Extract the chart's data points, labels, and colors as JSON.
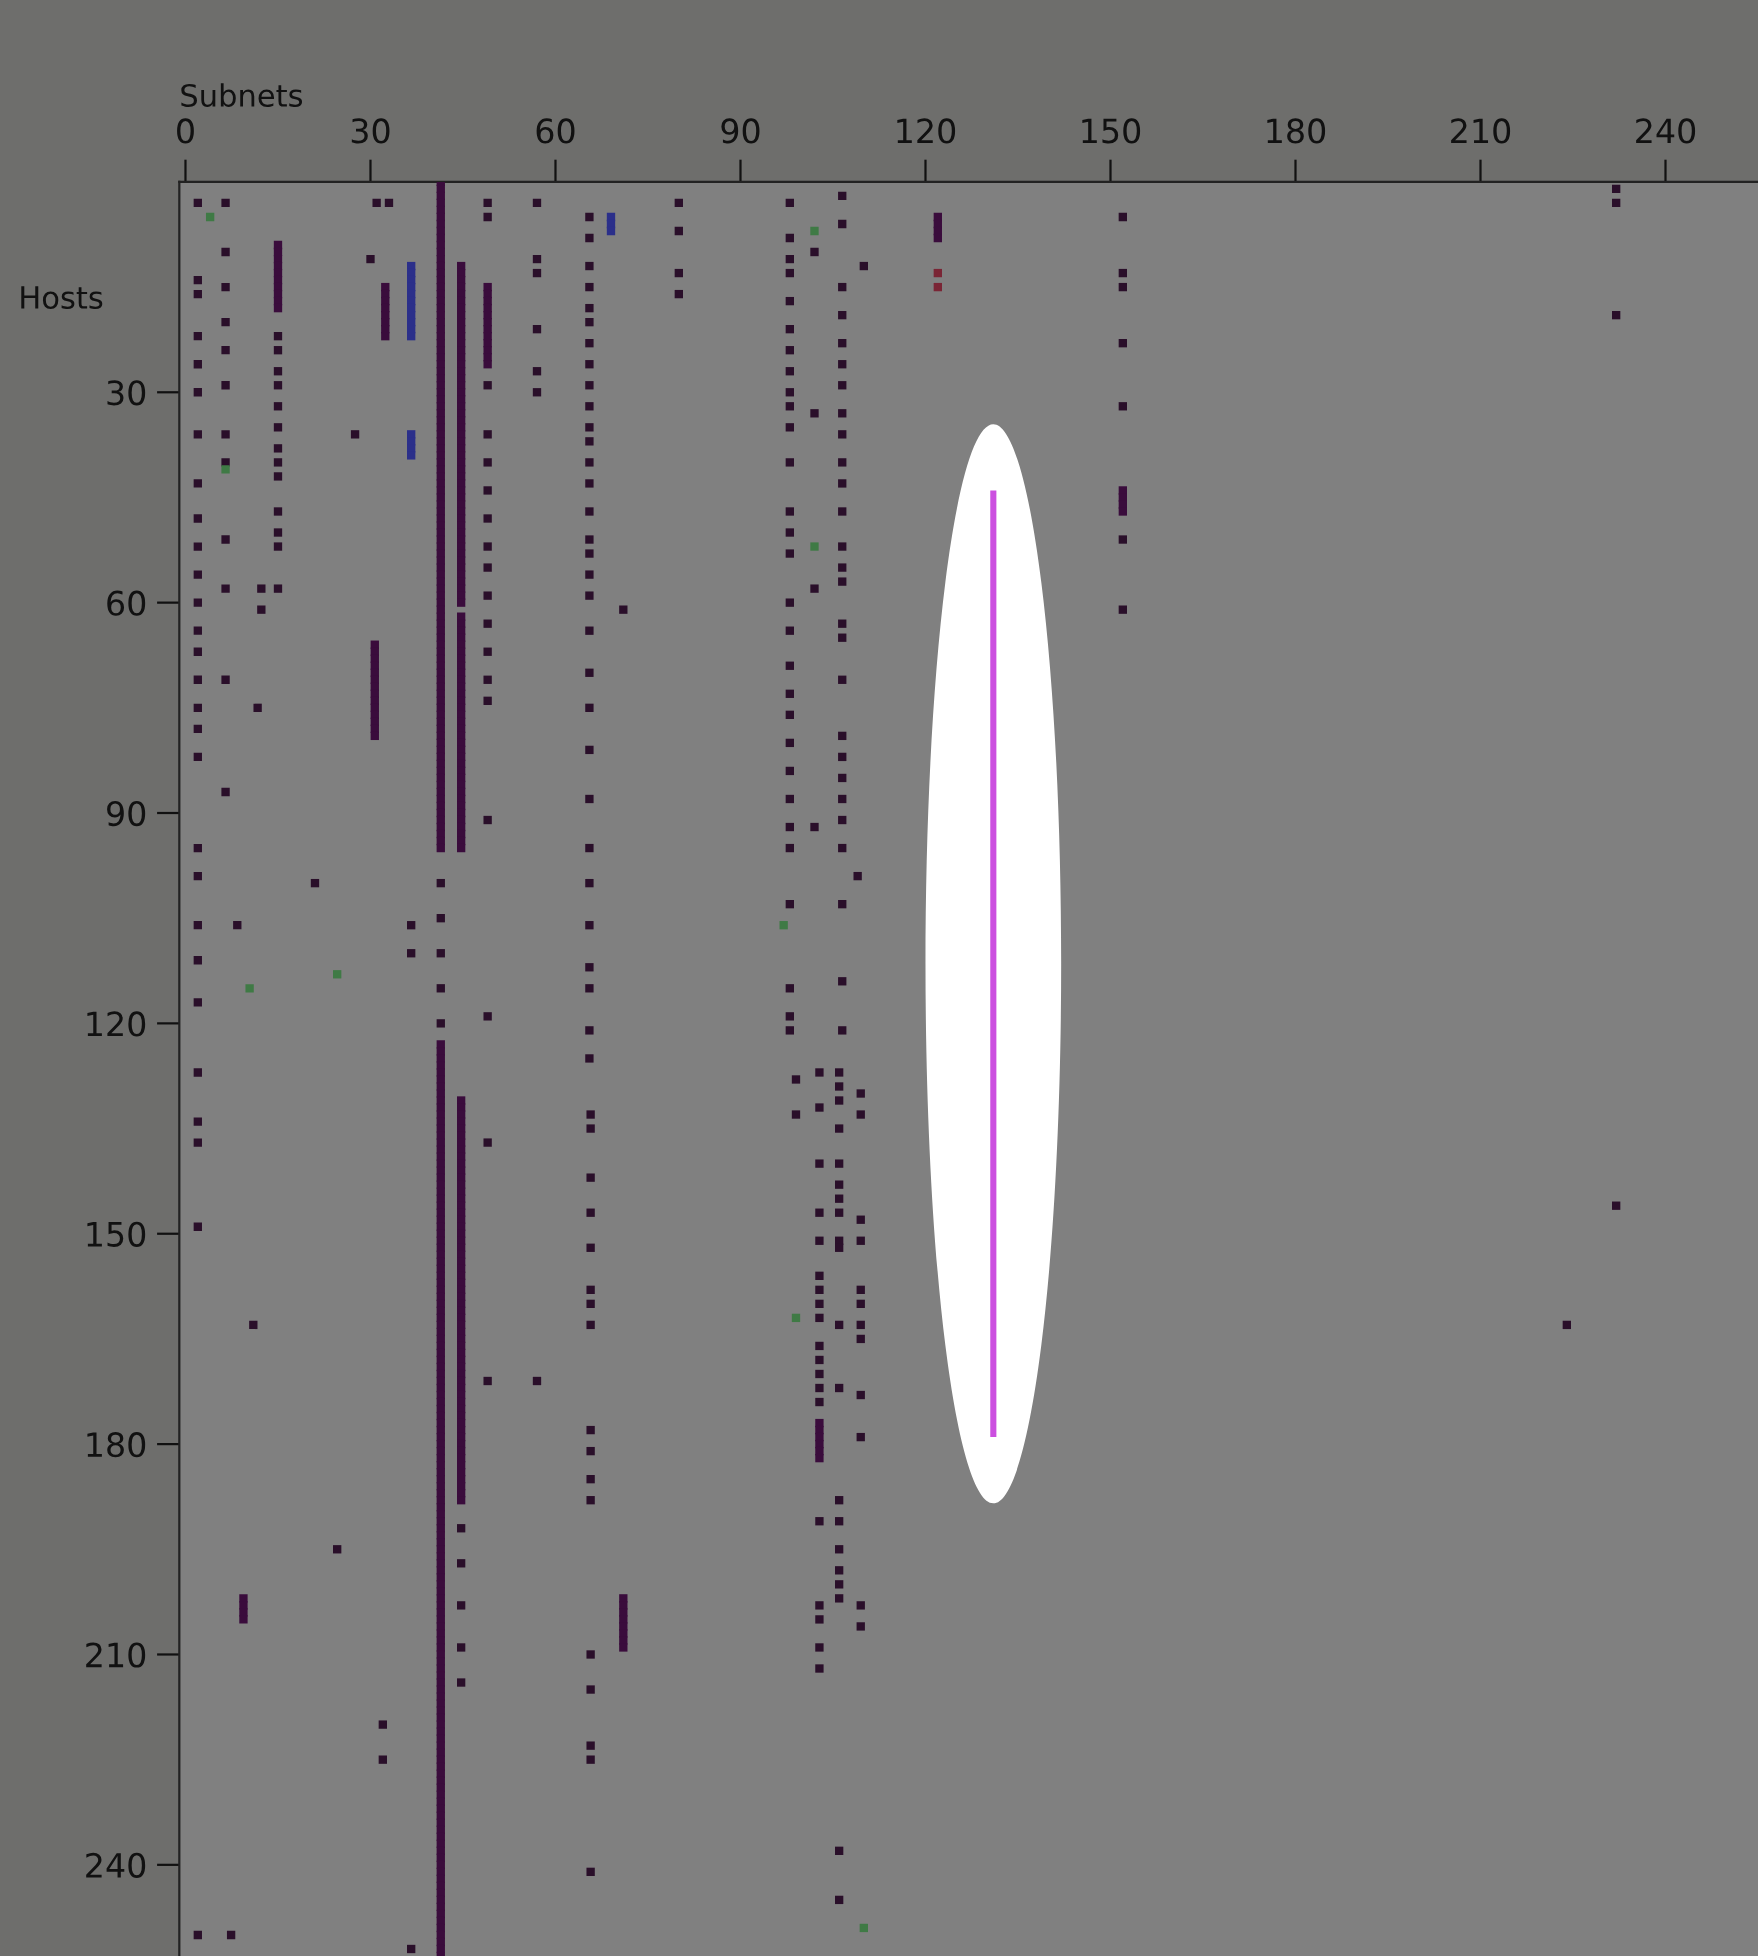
{
  "chart_data": {
    "type": "scatter",
    "xlabel": "Subnets",
    "ylabel": "Hosts",
    "xlim": [
      -1,
      255
    ],
    "ylim": [
      253,
      0
    ],
    "xticks": [
      0,
      30,
      60,
      90,
      120,
      150,
      180,
      210,
      240
    ],
    "yticks": [
      30,
      60,
      90,
      120,
      150,
      180,
      210,
      240
    ],
    "marker": "square",
    "line_style": "solid",
    "series": [
      {
        "type": "scatter",
        "color": "#2a0f2a",
        "x": [
          2,
          2,
          2,
          2,
          2,
          2,
          2,
          2,
          2,
          2,
          2,
          2,
          2,
          2,
          2,
          2,
          2,
          2,
          2,
          2,
          2,
          2,
          2,
          2,
          2,
          2,
          2,
          2
        ],
        "values": [
          3,
          14,
          16,
          22,
          26,
          30,
          36,
          43,
          48,
          52,
          56,
          60,
          64,
          67,
          71,
          75,
          78,
          82,
          95,
          99,
          106,
          111,
          117,
          127,
          134,
          137,
          149,
          250
        ]
      },
      {
        "type": "scatter",
        "color": "#2a0f2a",
        "x": [
          6.5,
          6.5,
          6.5,
          6.5,
          6.5,
          6.5,
          6.5,
          6.5,
          6.5,
          6.5,
          6.5,
          6.5,
          12.3,
          12.3,
          11.7,
          21,
          8.4,
          11,
          24.6,
          7.4,
          36.6,
          36.6,
          36.6,
          27.5,
          30,
          31,
          33
        ],
        "values": [
          3,
          10,
          15,
          20,
          24,
          29,
          36,
          40,
          51,
          58,
          71,
          87,
          58,
          61,
          75,
          100,
          106,
          163,
          195,
          250,
          106,
          110,
          252,
          36,
          11,
          3,
          3
        ]
      },
      {
        "type": "scatter",
        "color": "#2a0f2a",
        "x": [
          15,
          15,
          15,
          15,
          15,
          15,
          15,
          15,
          15,
          15,
          15,
          15,
          15,
          41.4,
          41.4,
          41.4,
          41.4,
          41.4,
          32,
          32
        ],
        "values": [
          22,
          24,
          27,
          29,
          32,
          35,
          38,
          40,
          42,
          47,
          50,
          52,
          58,
          100,
          105,
          110,
          115,
          120,
          220,
          225
        ]
      },
      {
        "type": "scatter",
        "color": "#2a0f2a",
        "x": [
          44.7,
          44.7,
          44.7,
          44.7,
          44.7,
          49,
          49,
          49,
          49,
          49,
          49,
          49,
          49,
          49,
          49,
          49,
          49,
          49,
          49,
          49,
          49,
          49,
          49
        ],
        "values": [
          192,
          197,
          203,
          209,
          214,
          3,
          5,
          29,
          36,
          40,
          44,
          48,
          52,
          55,
          59,
          63,
          67,
          71,
          74,
          91,
          119,
          137,
          171
        ]
      },
      {
        "type": "scatter",
        "color": "#2a0f2a",
        "x": [
          57,
          57,
          57,
          57,
          57,
          57,
          57,
          71
        ],
        "values": [
          3,
          11,
          13,
          21,
          27,
          30,
          171,
          61
        ]
      },
      {
        "type": "scatter",
        "color": "#2a0f2a",
        "x": [
          65.5,
          65.5,
          65.5,
          65.5,
          65.5,
          65.5,
          65.5,
          65.5,
          65.5,
          65.5,
          65.5,
          65.5,
          65.5,
          65.5,
          65.5,
          65.5,
          65.5,
          65.5,
          65.5,
          65.5,
          65.5,
          65.5,
          65.5,
          65.5,
          65.5,
          65.5,
          65.5,
          65.5,
          65.5,
          65.5,
          65.5
        ],
        "values": [
          5,
          8,
          12,
          15,
          18,
          20,
          23,
          26,
          29,
          32,
          35,
          37,
          40,
          43,
          47,
          51,
          53,
          56,
          59,
          64,
          70,
          75,
          81,
          88,
          95,
          100,
          106,
          112,
          115,
          121,
          125
        ]
      },
      {
        "type": "scatter",
        "color": "#2a0f2a",
        "x": [
          65.7,
          65.7,
          65.7,
          65.7,
          65.7,
          65.7,
          65.7,
          65.7,
          65.7,
          65.7,
          65.7,
          65.7,
          65.7,
          65.7,
          65.7,
          65.7,
          65.7
        ],
        "values": [
          133,
          135,
          142,
          147,
          152,
          158,
          160,
          163,
          178,
          181,
          185,
          188,
          210,
          215,
          223,
          225,
          241
        ]
      },
      {
        "type": "scatter",
        "color": "#2a0f2a",
        "x": [
          80,
          80,
          80,
          80,
          98,
          98,
          98,
          98,
          98,
          98,
          98,
          98,
          98,
          98,
          98,
          98,
          98,
          98,
          98,
          98,
          98,
          98,
          98,
          98,
          98,
          98,
          98,
          98,
          98,
          98,
          98,
          98,
          98
        ],
        "values": [
          3,
          7,
          13,
          16,
          3,
          8,
          11,
          13,
          17,
          21,
          24,
          27,
          30,
          32,
          35,
          40,
          47,
          50,
          53,
          60,
          64,
          69,
          73,
          76,
          80,
          84,
          88,
          92,
          95,
          103,
          115,
          119,
          121
        ]
      },
      {
        "type": "scatter",
        "color": "#2a0f2a",
        "x": [
          102,
          102,
          102,
          102,
          106.5,
          106.5,
          106.5,
          106.5,
          106.5,
          106.5,
          106.5,
          106.5,
          106.5,
          106.5,
          106.5,
          106.5,
          106.5,
          106.5,
          106.5,
          106.5,
          106.5,
          106.5,
          106.5,
          106.5,
          106.5,
          106.5,
          106.5,
          106.5,
          106.5,
          106.5,
          106.5,
          110,
          109
        ],
        "values": [
          10,
          33,
          58,
          92,
          2,
          6,
          15,
          19,
          23,
          26,
          29,
          33,
          36,
          40,
          43,
          47,
          52,
          55,
          57,
          63,
          65,
          71,
          79,
          82,
          85,
          88,
          91,
          95,
          103,
          114,
          121,
          12,
          99
        ]
      },
      {
        "type": "scatter",
        "color": "#2a0f2a",
        "x": [
          99,
          99,
          102.8,
          102.8,
          102.8,
          102.8,
          102.8,
          102.8,
          102.8,
          102.8,
          102.8,
          102.8,
          102.8,
          102.8,
          102.8,
          102.8,
          102.8,
          102.8,
          102.8,
          102.8,
          102.8
        ],
        "values": [
          128,
          133,
          127,
          132,
          140,
          147,
          151,
          156,
          158,
          160,
          162,
          166,
          168,
          170,
          172,
          174,
          191,
          203,
          205,
          209,
          212
        ]
      },
      {
        "type": "scatter",
        "color": "#2a0f2a",
        "x": [
          106,
          106,
          106,
          106,
          106,
          106,
          106,
          106,
          106,
          106,
          106,
          106,
          106,
          106,
          106,
          106,
          106,
          106,
          106,
          106
        ],
        "values": [
          127,
          129,
          131,
          135,
          140,
          143,
          145,
          147,
          151,
          152,
          163,
          172,
          188,
          191,
          195,
          198,
          200,
          202,
          238,
          245
        ]
      },
      {
        "type": "scatter",
        "color": "#2a0f2a",
        "x": [
          109.5,
          109.5,
          109.5,
          109.5,
          109.5,
          109.5,
          109.5,
          109.5,
          109.5,
          109.5,
          109.5,
          109.5,
          152,
          152,
          152,
          152,
          152,
          152,
          152,
          232,
          232,
          232,
          232,
          224
        ],
        "values": [
          130,
          133,
          148,
          151,
          158,
          160,
          163,
          165,
          173,
          179,
          203,
          206,
          5,
          13,
          15,
          23,
          32,
          51,
          61,
          1,
          3,
          19,
          146,
          163
        ]
      },
      {
        "type": "scatter",
        "color": "#7a2535",
        "x": [
          122,
          122
        ],
        "values": [
          13,
          15
        ]
      },
      {
        "type": "scatter",
        "color": "#3f7a45",
        "x": [
          4,
          6.5,
          10.4,
          24.6,
          102,
          97,
          102,
          99,
          110
        ],
        "values": [
          5,
          41,
          115,
          113,
          7,
          106,
          52,
          162,
          249
        ]
      },
      {
        "color": "#3a0c3c",
        "x": [
          41.4,
          41.4,
          41.4,
          41.4,
          41.4,
          41.4,
          41.4,
          41.4,
          41.4,
          41.4,
          41.4,
          41.4,
          41.4,
          41.4,
          41.4,
          41.4,
          41.4,
          41.4,
          41.4,
          41.4,
          41.4,
          41.4,
          41.4,
          41.4,
          41.4,
          41.4,
          41.4,
          41.4,
          41.4,
          41.4,
          41.4,
          41.4,
          41.4,
          41.4,
          41.4,
          41.4,
          41.4,
          41.4,
          41.4,
          41.4,
          41.4,
          41.4,
          41.4,
          41.4,
          41.4,
          41.4,
          41.4,
          41.4
        ],
        "values": [
          0,
          1,
          2,
          3,
          4,
          5,
          6,
          7,
          8,
          9,
          10,
          11,
          12,
          13,
          14,
          15,
          16,
          17,
          18,
          19,
          20,
          21,
          22,
          23,
          24,
          25,
          26,
          27,
          28,
          29,
          30,
          31,
          32,
          33,
          34,
          35,
          36,
          37,
          38,
          39,
          40,
          41,
          42,
          43,
          44,
          45,
          46,
          47
        ]
      },
      {
        "color": "#3a0c3c",
        "x": [
          41.4,
          41.4,
          41.4,
          41.4,
          41.4,
          41.4,
          41.4,
          41.4,
          41.4,
          41.4,
          41.4,
          41.4,
          41.4,
          41.4,
          41.4,
          41.4,
          41.4,
          41.4,
          41.4,
          41.4,
          41.4,
          41.4,
          41.4,
          41.4,
          41.4,
          41.4,
          41.4,
          41.4,
          41.4,
          41.4,
          41.4,
          41.4,
          41.4,
          41.4,
          41.4,
          41.4,
          41.4,
          41.4,
          41.4,
          41.4,
          41.4,
          41.4,
          41.4,
          41.4,
          41.4,
          41.4,
          41.4,
          41.4
        ],
        "values": [
          48,
          49,
          50,
          51,
          52,
          53,
          54,
          55,
          56,
          57,
          58,
          59,
          60,
          61,
          62,
          63,
          64,
          65,
          66,
          67,
          68,
          69,
          70,
          71,
          72,
          73,
          74,
          75,
          76,
          77,
          78,
          79,
          80,
          81,
          82,
          83,
          84,
          85,
          86,
          87,
          88,
          89,
          90,
          91,
          92,
          93,
          94,
          95
        ]
      },
      {
        "color": "#3a0c3c",
        "x": [
          41.4,
          41.4,
          41.4,
          41.4,
          41.4,
          41.4,
          41.4,
          41.4,
          41.4,
          41.4,
          41.4,
          41.4,
          41.4,
          41.4,
          41.4,
          41.4,
          41.4,
          41.4,
          41.4,
          41.4,
          41.4,
          41.4,
          41.4,
          41.4,
          41.4,
          41.4,
          41.4,
          41.4,
          41.4,
          41.4,
          41.4,
          41.4,
          41.4,
          41.4,
          41.4,
          41.4,
          41.4,
          41.4,
          41.4,
          41.4,
          41.4,
          41.4,
          41.4,
          41.4,
          41.4,
          41.4,
          41.4,
          41.4,
          41.4,
          41.4,
          41.4,
          41.4,
          41.4,
          41.4,
          41.4,
          41.4,
          41.4,
          41.4,
          41.4,
          41.4,
          41.4,
          41.4,
          41.4,
          41.4,
          41.4
        ],
        "values": [
          123,
          124,
          125,
          126,
          127,
          128,
          129,
          130,
          131,
          132,
          133,
          134,
          135,
          136,
          137,
          138,
          139,
          140,
          141,
          142,
          143,
          144,
          145,
          146,
          147,
          148,
          149,
          150,
          151,
          152,
          153,
          154,
          155,
          156,
          157,
          158,
          159,
          160,
          161,
          162,
          163,
          164,
          165,
          166,
          167,
          168,
          169,
          170,
          171,
          172,
          173,
          174,
          175,
          176,
          177,
          178,
          179,
          180,
          181,
          182,
          183,
          184,
          185,
          186,
          187
        ]
      },
      {
        "color": "#3a0c3c",
        "x": [
          41.4,
          41.4,
          41.4,
          41.4,
          41.4,
          41.4,
          41.4,
          41.4,
          41.4,
          41.4,
          41.4,
          41.4,
          41.4,
          41.4,
          41.4,
          41.4,
          41.4,
          41.4,
          41.4,
          41.4,
          41.4,
          41.4,
          41.4,
          41.4,
          41.4,
          41.4,
          41.4,
          41.4,
          41.4,
          41.4,
          41.4,
          41.4,
          41.4,
          41.4,
          41.4,
          41.4,
          41.4,
          41.4,
          41.4,
          41.4,
          41.4,
          41.4,
          41.4,
          41.4,
          41.4,
          41.4,
          41.4,
          41.4,
          41.4,
          41.4,
          41.4,
          41.4,
          41.4,
          41.4,
          41.4,
          41.4,
          41.4,
          41.4,
          41.4,
          41.4,
          41.4,
          41.4,
          41.4,
          41.4,
          41.4,
          41.4
        ],
        "values": [
          188,
          189,
          190,
          191,
          192,
          193,
          194,
          195,
          196,
          197,
          198,
          199,
          200,
          201,
          202,
          203,
          204,
          205,
          206,
          207,
          208,
          209,
          210,
          211,
          212,
          213,
          214,
          215,
          216,
          217,
          218,
          219,
          220,
          221,
          222,
          223,
          224,
          225,
          226,
          227,
          228,
          229,
          230,
          231,
          232,
          233,
          234,
          235,
          236,
          237,
          238,
          239,
          240,
          241,
          242,
          243,
          244,
          245,
          246,
          247,
          248,
          249,
          250,
          251,
          252,
          253
        ]
      },
      {
        "color": "#3a0c3c",
        "x": [
          44.7,
          44.7,
          44.7,
          44.7,
          44.7,
          44.7,
          44.7,
          44.7,
          44.7,
          44.7,
          44.7,
          44.7,
          44.7,
          44.7,
          44.7,
          44.7,
          44.7,
          44.7,
          44.7,
          44.7,
          44.7,
          44.7,
          44.7,
          44.7,
          44.7,
          44.7,
          44.7,
          44.7,
          44.7,
          44.7,
          44.7,
          44.7,
          44.7,
          44.7,
          44.7,
          44.7,
          44.7,
          44.7,
          44.7,
          44.7,
          44.7,
          44.7,
          44.7,
          44.7,
          44.7,
          44.7,
          44.7,
          44.7,
          44.7
        ],
        "values": [
          12,
          13,
          14,
          15,
          16,
          17,
          18,
          19,
          20,
          21,
          22,
          23,
          24,
          25,
          26,
          27,
          28,
          29,
          30,
          31,
          32,
          33,
          34,
          35,
          36,
          37,
          38,
          39,
          40,
          41,
          42,
          43,
          44,
          45,
          46,
          47,
          48,
          49,
          50,
          51,
          52,
          53,
          54,
          55,
          56,
          57,
          58,
          59,
          60
        ]
      },
      {
        "color": "#3a0c3c",
        "x": [
          44.7,
          44.7,
          44.7,
          44.7,
          44.7,
          44.7,
          44.7,
          44.7,
          44.7,
          44.7,
          44.7,
          44.7,
          44.7,
          44.7,
          44.7,
          44.7,
          44.7,
          44.7,
          44.7,
          44.7,
          44.7,
          44.7,
          44.7,
          44.7,
          44.7,
          44.7,
          44.7,
          44.7,
          44.7,
          44.7,
          44.7,
          44.7,
          44.7,
          44.7
        ],
        "values": [
          62,
          63,
          64,
          65,
          66,
          67,
          68,
          69,
          70,
          71,
          72,
          73,
          74,
          75,
          76,
          77,
          78,
          79,
          80,
          81,
          82,
          83,
          84,
          85,
          86,
          87,
          88,
          89,
          90,
          91,
          92,
          93,
          94,
          95
        ]
      },
      {
        "color": "#3a0c3c",
        "x": [
          44.7,
          44.7,
          44.7,
          44.7,
          44.7,
          44.7,
          44.7,
          44.7,
          44.7,
          44.7,
          44.7,
          44.7,
          44.7,
          44.7,
          44.7,
          44.7,
          44.7,
          44.7,
          44.7,
          44.7,
          44.7,
          44.7,
          44.7,
          44.7,
          44.7,
          44.7,
          44.7,
          44.7,
          44.7,
          44.7,
          44.7,
          44.7,
          44.7,
          44.7,
          44.7,
          44.7,
          44.7,
          44.7,
          44.7,
          44.7,
          44.7,
          44.7,
          44.7,
          44.7,
          44.7,
          44.7,
          44.7,
          44.7,
          44.7,
          44.7,
          44.7,
          44.7,
          44.7,
          44.7,
          44.7,
          44.7,
          44.7,
          44.7
        ],
        "values": [
          131,
          132,
          133,
          134,
          135,
          136,
          137,
          138,
          139,
          140,
          141,
          142,
          143,
          144,
          145,
          146,
          147,
          148,
          149,
          150,
          151,
          152,
          153,
          154,
          155,
          156,
          157,
          158,
          159,
          160,
          161,
          162,
          163,
          164,
          165,
          166,
          167,
          168,
          169,
          170,
          171,
          172,
          173,
          174,
          175,
          176,
          177,
          178,
          179,
          180,
          181,
          182,
          183,
          184,
          185,
          186,
          187,
          188
        ]
      },
      {
        "color": "#3a0c3c",
        "x": [
          15,
          15,
          15,
          15,
          15,
          15,
          15,
          15,
          15,
          15,
          30.7,
          30.7,
          30.7,
          30.7,
          30.7,
          30.7,
          30.7,
          30.7,
          30.7,
          30.7,
          30.7,
          30.7,
          30.7,
          30.7,
          32.4,
          32.4,
          32.4,
          32.4,
          32.4,
          32.4,
          32.4,
          32.4,
          49,
          49,
          49,
          49,
          49,
          49,
          49,
          49,
          49,
          49,
          49,
          49,
          71,
          71,
          71,
          71,
          71,
          71,
          71,
          71,
          9.4,
          9.4,
          9.4,
          9.4
        ],
        "values": [
          9,
          10,
          11,
          12,
          13,
          14,
          15,
          16,
          17,
          18,
          66,
          67,
          68,
          69,
          70,
          71,
          72,
          73,
          74,
          75,
          76,
          77,
          78,
          79,
          15,
          16,
          17,
          18,
          19,
          20,
          21,
          22,
          15,
          16,
          17,
          18,
          19,
          20,
          21,
          22,
          23,
          24,
          25,
          26,
          202,
          203,
          204,
          205,
          206,
          207,
          208,
          209,
          202,
          203,
          204,
          205
        ]
      },
      {
        "color": "#3a0c3c",
        "x": [
          152,
          152,
          152,
          152,
          102.8,
          102.8,
          102.8,
          102.8,
          102.8,
          102.8,
          122,
          122,
          122,
          122
        ],
        "values": [
          44,
          45,
          46,
          47,
          177,
          178,
          179,
          180,
          181,
          182,
          5,
          6,
          7,
          8
        ]
      },
      {
        "color": "#2b2f8a",
        "x": [
          36.6,
          36.6,
          36.6,
          36.6,
          36.6,
          36.6,
          36.6,
          36.6,
          36.6,
          36.6,
          36.6,
          36.6,
          36.6,
          36.6,
          36.6,
          69,
          69,
          69
        ],
        "values": [
          12,
          13,
          14,
          15,
          16,
          17,
          18,
          19,
          20,
          21,
          22,
          36,
          37,
          38,
          39,
          5,
          6,
          7
        ]
      },
      {
        "type": "line",
        "marker": "none",
        "color": "#cc4fe0",
        "x": [
          131,
          131
        ],
        "values": [
          44,
          179
        ]
      }
    ]
  }
}
